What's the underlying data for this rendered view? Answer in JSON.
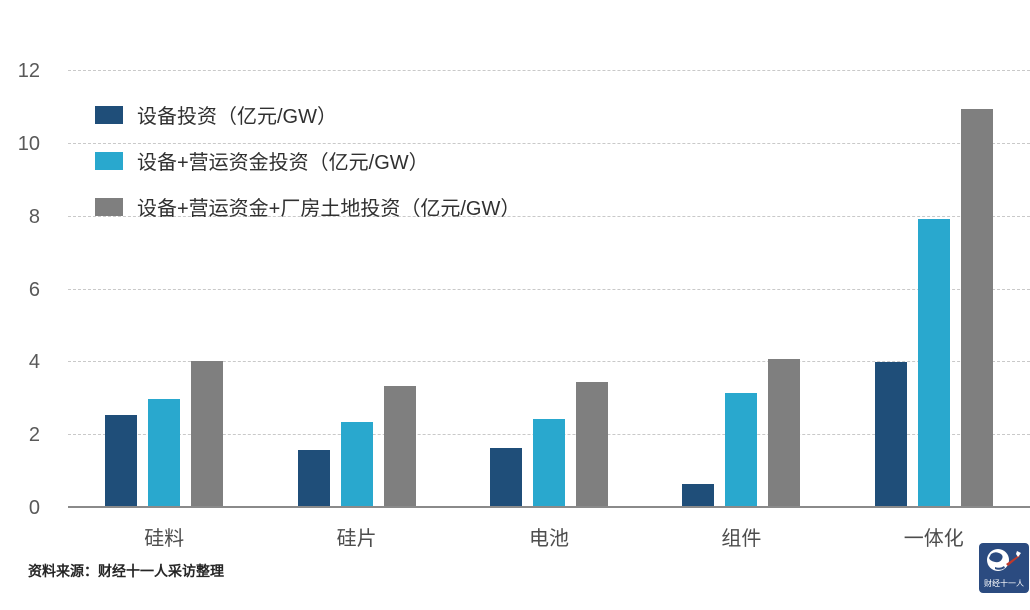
{
  "chart_data": {
    "type": "bar",
    "title": "",
    "categories": [
      "硅料",
      "硅片",
      "电池",
      "组件",
      "一体化"
    ],
    "series": [
      {
        "name": "设备投资（亿元/GW）",
        "color": "#1F4E79",
        "values": [
          2.55,
          1.6,
          1.65,
          0.65,
          4.0
        ]
      },
      {
        "name": "设备+营运资金投资（亿元/GW）",
        "color": "#29A8CE",
        "values": [
          3.0,
          2.35,
          2.45,
          3.15,
          7.95
        ]
      },
      {
        "name": "设备+营运资金+厂房土地投资（亿元/GW）",
        "color": "#7F7F7F",
        "values": [
          4.05,
          3.35,
          3.45,
          4.1,
          10.95
        ]
      }
    ],
    "ylim": [
      0,
      12
    ],
    "yticks": [
      0,
      2,
      4,
      6,
      8,
      10,
      12
    ],
    "grid": true,
    "legend_position": "top-left"
  },
  "source_note": "资料来源：财经十一人采访整理",
  "logo": {
    "text": "财经十一人",
    "bg_color": "#2B4B80"
  },
  "colors": {
    "background": "#FFFFFF",
    "gridline": "#C9C9C9",
    "baseline": "#8A8A8A",
    "axis_text": "#595959",
    "category_text": "#4D4D4D",
    "legend_text": "#303030",
    "logo_accent_red": "#C0392B"
  }
}
